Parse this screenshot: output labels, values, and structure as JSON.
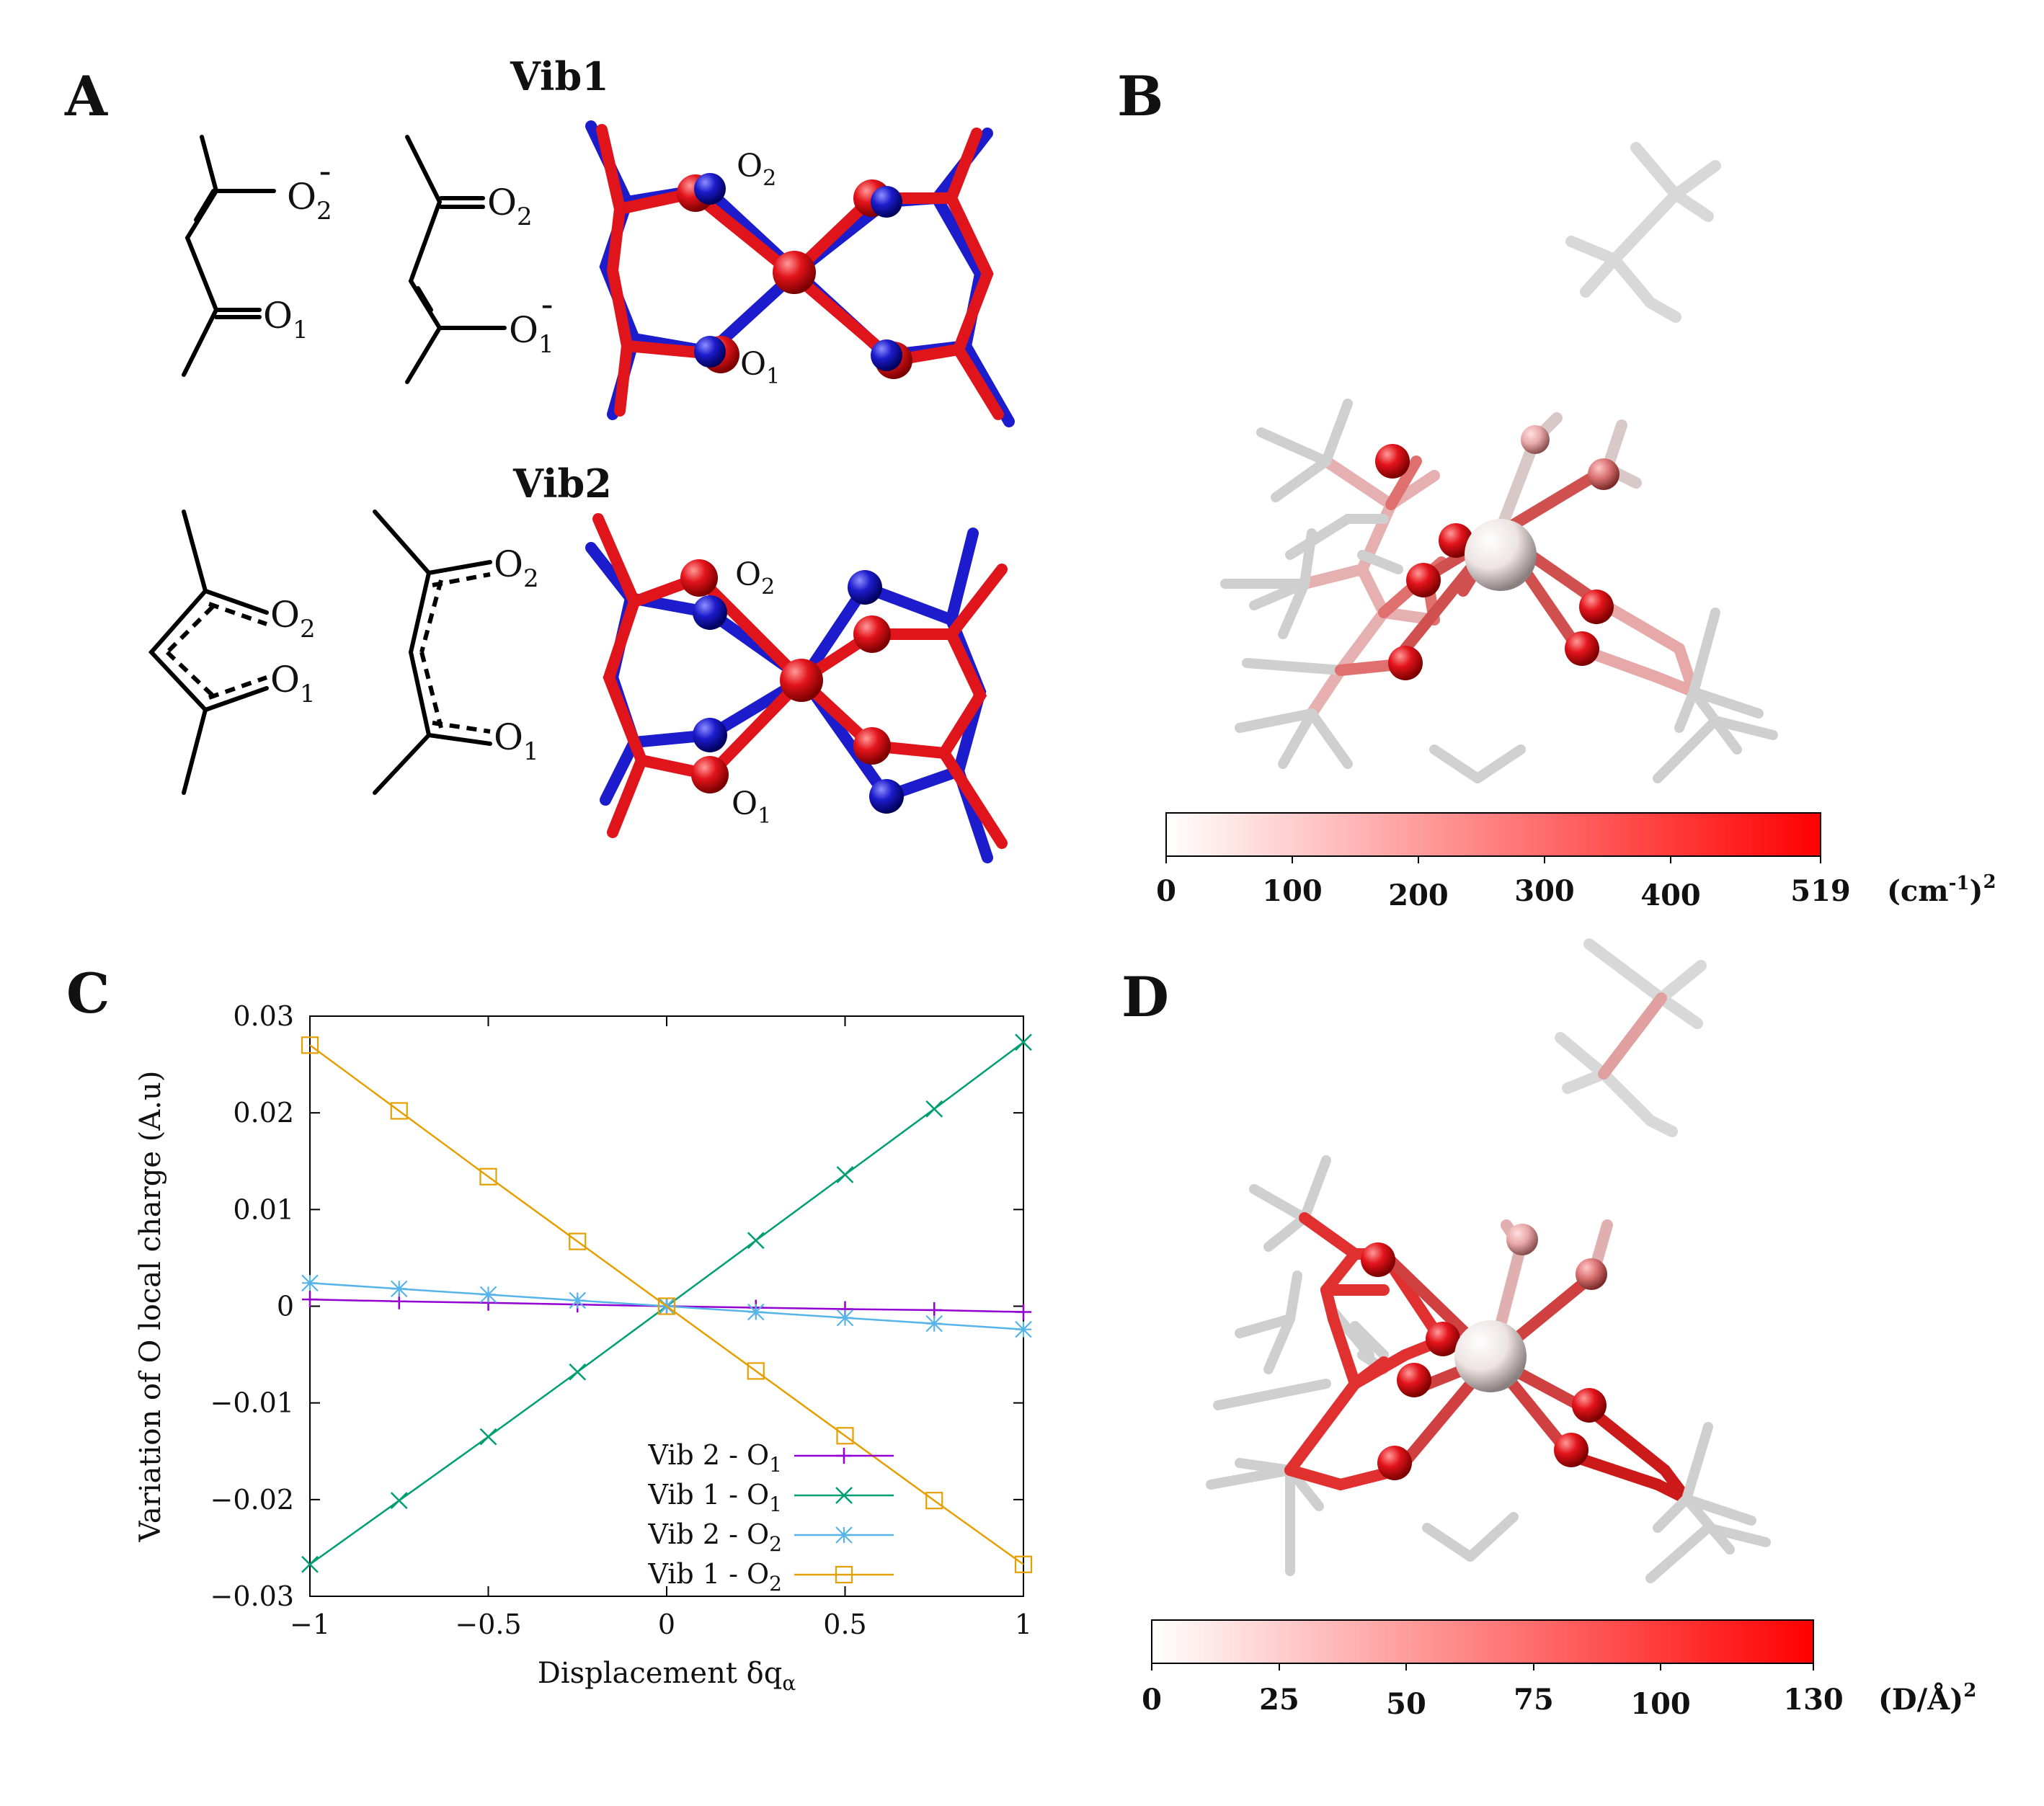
{
  "panels": {
    "A": {
      "letter": "A",
      "vib1_title": "Vib1",
      "vib2_title": "Vib2",
      "labels": {
        "O": "O",
        "sub1": "1",
        "sub2": "2",
        "minus": "-"
      }
    },
    "B": {
      "letter": "B",
      "colorbar": {
        "ticks": [
          "0",
          "100",
          "200",
          "300",
          "400",
          "519"
        ],
        "unit_prefix": "(cm",
        "unit_sup": "-1",
        "unit_suffix": ")",
        "unit_power": "2",
        "max": 519,
        "color_low": "#ffffff",
        "color_high": "#ff0000"
      }
    },
    "C": {
      "letter": "C"
    },
    "D": {
      "letter": "D",
      "colorbar": {
        "ticks": [
          "0",
          "25",
          "50",
          "75",
          "100",
          "130"
        ],
        "unit": "(D/Å)",
        "unit_power": "2",
        "max": 130,
        "color_low": "#ffffff",
        "color_high": "#ff0000"
      }
    }
  },
  "colors": {
    "red_atom": "#e0141b",
    "blue_atom": "#1c1ccc",
    "vib2_O1": "#9400d3",
    "vib1_O1": "#009e73",
    "vib2_O2": "#56b4e9",
    "vib1_O2": "#e69f00"
  },
  "chart_data": {
    "type": "line",
    "xlabel": "Displacement δq",
    "xlabel_sub": "α",
    "ylabel": "Variation of O local charge (A.u)",
    "xlim": [
      -1,
      1
    ],
    "ylim": [
      -0.03,
      0.03
    ],
    "x_ticks": [
      "−1",
      "−0.5",
      "0",
      "0.5",
      "1"
    ],
    "x_tick_values": [
      -1,
      -0.5,
      0,
      0.5,
      1
    ],
    "y_ticks": [
      "0.03",
      "0.02",
      "0.01",
      "0",
      "−0.01",
      "−0.02",
      "−0.03"
    ],
    "y_tick_values": [
      0.03,
      0.02,
      0.01,
      0,
      -0.01,
      -0.02,
      -0.03
    ],
    "x": [
      -1,
      -0.75,
      -0.5,
      -0.25,
      0,
      0.25,
      0.5,
      0.75,
      1
    ],
    "series": [
      {
        "name": "Vib 2 - O",
        "sub": "1",
        "marker": "plus",
        "color": "#9400d3",
        "values": [
          0.0007,
          0.0005,
          0.00035,
          0.00018,
          0,
          -0.00015,
          -0.0003,
          -0.0004,
          -0.0006
        ]
      },
      {
        "name": "Vib 1 - O",
        "sub": "1",
        "marker": "cross",
        "color": "#009e73",
        "values": [
          -0.0267,
          -0.0201,
          -0.0135,
          -0.0068,
          0,
          0.0068,
          0.0136,
          0.0204,
          0.0273
        ]
      },
      {
        "name": "Vib 2 - O",
        "sub": "2",
        "marker": "star",
        "color": "#56b4e9",
        "values": [
          0.0024,
          0.0018,
          0.0012,
          0.0006,
          0,
          -0.0006,
          -0.0012,
          -0.0018,
          -0.0024
        ]
      },
      {
        "name": "Vib 1 - O",
        "sub": "2",
        "marker": "square",
        "color": "#e69f00",
        "values": [
          0.027,
          0.0202,
          0.0134,
          0.0067,
          0,
          -0.0067,
          -0.0134,
          -0.0201,
          -0.0267
        ]
      }
    ]
  }
}
